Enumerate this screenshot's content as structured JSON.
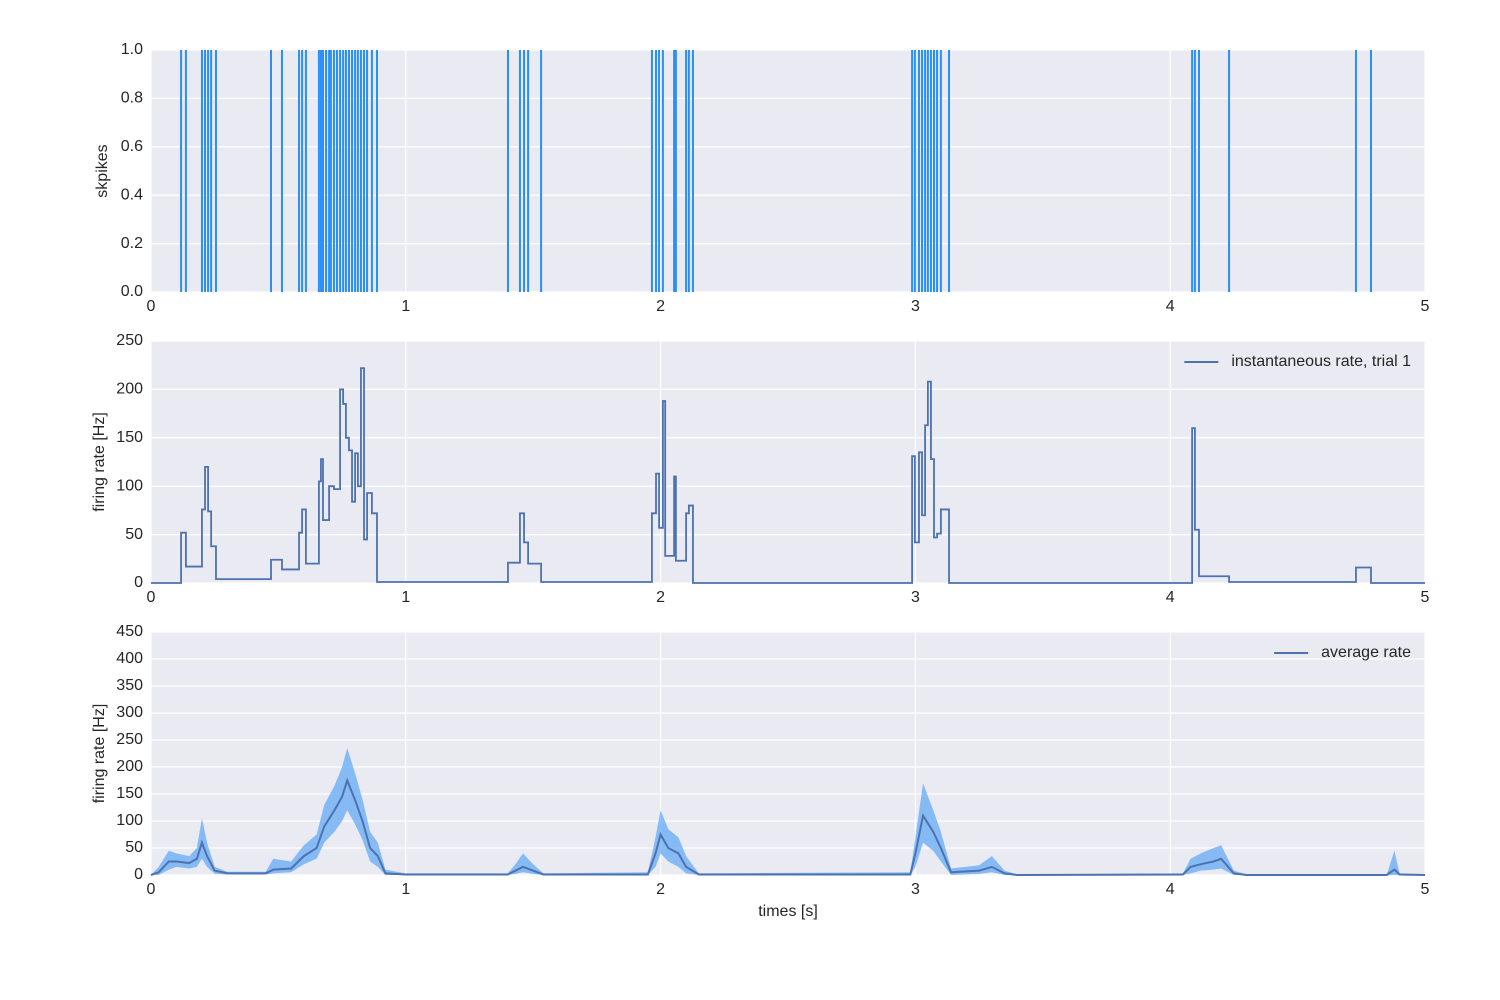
{
  "chart_data": [
    {
      "type": "eventplot",
      "ylabel": "skpikes",
      "color": "#2a8ff7",
      "x": [
        0.118,
        0.137,
        0.2,
        0.212,
        0.224,
        0.236,
        0.255,
        0.471,
        0.514,
        0.581,
        0.593,
        0.608,
        0.659,
        0.667,
        0.675,
        0.687,
        0.699,
        0.706,
        0.718,
        0.73,
        0.742,
        0.754,
        0.765,
        0.777,
        0.789,
        0.801,
        0.812,
        0.824,
        0.836,
        0.848,
        0.867,
        0.887,
        1.401,
        1.448,
        1.464,
        1.48,
        1.531,
        1.966,
        1.982,
        1.994,
        2.009,
        2.053,
        2.06,
        2.1,
        2.111,
        2.127,
        2.987,
        2.998,
        3.014,
        3.026,
        3.038,
        3.049,
        3.061,
        3.073,
        3.085,
        3.1,
        3.132,
        4.086,
        4.097,
        4.113,
        4.231,
        4.729,
        4.788
      ],
      "xlim": [
        0,
        5
      ],
      "xticks": [
        0,
        1,
        2,
        3,
        4,
        5
      ],
      "ylim": [
        0,
        1
      ],
      "yticks": [
        {
          "value": 0,
          "label": "0.0"
        },
        0.2,
        0.4,
        0.6,
        0.8,
        {
          "value": 1,
          "label": "1.0"
        }
      ],
      "grid": true
    },
    {
      "type": "line",
      "step": "post",
      "ylabel": "firing rate [Hz]",
      "legend": "upper right",
      "x": [
        0,
        0.118,
        0.137,
        0.2,
        0.212,
        0.224,
        0.236,
        0.255,
        0.471,
        0.514,
        0.581,
        0.593,
        0.608,
        0.659,
        0.667,
        0.675,
        0.699,
        0.718,
        0.742,
        0.754,
        0.765,
        0.777,
        0.789,
        0.801,
        0.812,
        0.824,
        0.836,
        0.848,
        0.867,
        0.887,
        1.401,
        1.448,
        1.464,
        1.48,
        1.531,
        1.966,
        1.982,
        1.994,
        2.009,
        2.018,
        2.053,
        2.06,
        2.1,
        2.111,
        2.127,
        2.987,
        2.998,
        3.014,
        3.026,
        3.038,
        3.049,
        3.061,
        3.073,
        3.085,
        3.1,
        3.132,
        4.086,
        4.097,
        4.113,
        4.231,
        4.729,
        4.788,
        5
      ],
      "series": [
        {
          "name": "instantaneous rate, trial 1",
          "color": "#4c72b0",
          "values": [
            0,
            52,
            17,
            76,
            120,
            74,
            38,
            4,
            24,
            14,
            52,
            76,
            20,
            105,
            128,
            65,
            100,
            97,
            200,
            185,
            150,
            137,
            84,
            134,
            100,
            222,
            45,
            93,
            72,
            1,
            21,
            72,
            42,
            20,
            1,
            72,
            113,
            57,
            188,
            28,
            110,
            23,
            72,
            80,
            0,
            131,
            42,
            135,
            70,
            163,
            208,
            128,
            47,
            51,
            76,
            0,
            160,
            55,
            7,
            1,
            16,
            0,
            0
          ]
        }
      ],
      "xlim": [
        0,
        5
      ],
      "xticks": [
        0,
        1,
        2,
        3,
        4,
        5
      ],
      "ylim": [
        0,
        250
      ],
      "yticks": [
        0,
        50,
        100,
        150,
        200,
        250
      ],
      "grid": true
    },
    {
      "type": "band",
      "ylabel": "firing rate [Hz]",
      "xlabel": "times [s]",
      "legend": "upper right",
      "x": [
        0,
        0.03,
        0.07,
        0.1,
        0.15,
        0.18,
        0.2,
        0.22,
        0.25,
        0.3,
        0.45,
        0.48,
        0.55,
        0.6,
        0.65,
        0.68,
        0.72,
        0.75,
        0.77,
        0.8,
        0.83,
        0.86,
        0.89,
        0.92,
        1.0,
        1.4,
        1.43,
        1.46,
        1.5,
        1.54,
        1.95,
        1.98,
        2.0,
        2.03,
        2.07,
        2.1,
        2.15,
        2.98,
        3.0,
        3.03,
        3.07,
        3.1,
        3.14,
        3.25,
        3.3,
        3.35,
        3.4,
        4.05,
        4.08,
        4.12,
        4.17,
        4.2,
        4.25,
        4.3,
        4.85,
        4.88,
        4.9,
        5
      ],
      "series": [
        {
          "name": "average rate",
          "color": "#4c72b0",
          "band_color": "#64a9f5",
          "values": [
            0,
            5,
            25,
            25,
            22,
            30,
            60,
            35,
            8,
            3,
            3,
            10,
            12,
            35,
            50,
            90,
            120,
            145,
            175,
            140,
            100,
            50,
            35,
            3,
            1,
            1,
            8,
            15,
            8,
            1,
            1,
            40,
            75,
            50,
            40,
            15,
            1,
            1,
            40,
            110,
            80,
            50,
            5,
            8,
            15,
            3,
            0,
            1,
            15,
            20,
            25,
            30,
            3,
            0,
            0,
            10,
            1,
            0
          ],
          "lower": [
            0,
            0,
            10,
            15,
            12,
            15,
            30,
            15,
            2,
            1,
            1,
            3,
            5,
            20,
            30,
            60,
            80,
            100,
            120,
            95,
            65,
            25,
            15,
            0,
            0,
            0,
            2,
            5,
            2,
            0,
            0,
            15,
            40,
            25,
            15,
            3,
            0,
            0,
            15,
            60,
            45,
            25,
            0,
            2,
            5,
            0,
            0,
            0,
            3,
            8,
            10,
            12,
            0,
            0,
            0,
            0,
            0,
            0
          ],
          "upper": [
            0,
            15,
            45,
            40,
            35,
            50,
            105,
            60,
            15,
            6,
            6,
            30,
            25,
            55,
            75,
            130,
            165,
            200,
            235,
            190,
            140,
            80,
            60,
            10,
            3,
            3,
            20,
            40,
            20,
            3,
            5,
            70,
            120,
            85,
            70,
            35,
            3,
            5,
            70,
            170,
            120,
            80,
            12,
            18,
            35,
            8,
            1,
            3,
            30,
            40,
            50,
            55,
            8,
            1,
            1,
            45,
            3,
            1
          ]
        }
      ],
      "xlim": [
        0,
        5
      ],
      "xticks": [
        0,
        1,
        2,
        3,
        4,
        5
      ],
      "ylim": [
        0,
        450
      ],
      "yticks": [
        0,
        50,
        100,
        150,
        200,
        250,
        300,
        350,
        400,
        450
      ],
      "grid": true
    }
  ]
}
